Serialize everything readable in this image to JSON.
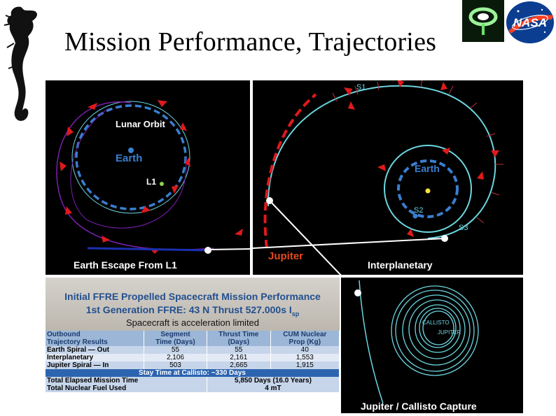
{
  "slide": {
    "title": "Mission Performance, Trajectories"
  },
  "logos": {
    "seahorse": "seahorse-logo",
    "ring": "ring-logo",
    "nasa": "NASA"
  },
  "panels": {
    "escape": {
      "caption": "Earth Escape From L1",
      "lunar_orbit": "Lunar Orbit",
      "earth": "Earth",
      "l1": "L1"
    },
    "interplanetary": {
      "caption": "Interplanetary",
      "earth": "Earth",
      "jupiter": "Jupiter",
      "s1": "S1",
      "s2": "S2",
      "s3": "S3"
    },
    "capture": {
      "caption": "Jupiter / Callisto Capture",
      "callisto": "CALLISTO",
      "jupiter": "JUPITER"
    }
  },
  "performance_table": {
    "heading_line1": "Initial FFRE Propelled Spacecraft Mission Performance",
    "heading_line2": "1st Generation FFRE: 43 N Thrust 527.000s I",
    "heading_line2_sub": "sp",
    "heading_line3": "Spacecraft is acceleration limited",
    "columns": [
      [
        "Outbound",
        "Trajectory Results"
      ],
      [
        "Segment",
        "Time (Days)"
      ],
      [
        "Thrust Time",
        "(Days)"
      ],
      [
        "CUM Nuclear",
        "Prop (Kg)"
      ]
    ],
    "rows": [
      {
        "name": "Earth Spiral — Out",
        "segment": "55",
        "thrust": "55",
        "prop": "40"
      },
      {
        "name": "Interplanetary",
        "segment": "2,106",
        "thrust": "2,161",
        "prop": "1,553"
      },
      {
        "name": "Jupiter Spiral — In",
        "segment": "503",
        "thrust": "2,665",
        "prop": "1,915"
      }
    ],
    "stay_time": "Stay Time at Callisto: ~330 Days",
    "totals": [
      {
        "label": "Total Elapsed Mission Time",
        "value": "5,850 Days (16.0 Years)"
      },
      {
        "label": "Total Nuclear Fuel Used",
        "value": "4 mT"
      }
    ]
  },
  "colors": {
    "orbit_blue": "#3a7fd0",
    "trajectory_cyan": "#6cd6e0",
    "thrust_red": "#e0191b",
    "jupiter_orange": "#e34a1a",
    "table_header_blue": "#234f8f",
    "stay_band": "#2c64b0"
  }
}
